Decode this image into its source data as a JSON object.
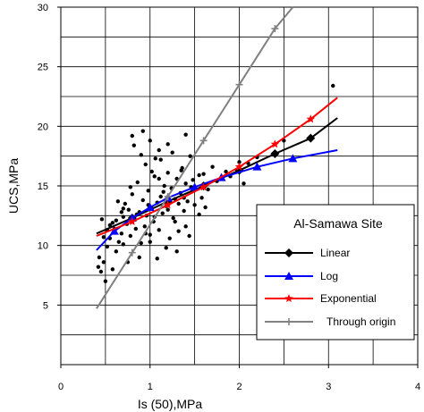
{
  "chart_data": {
    "type": "scatter",
    "xlabel": "Is (50),MPa",
    "ylabel": "UCS,MPa",
    "xlim": [
      0,
      4
    ],
    "ylim": [
      0,
      30
    ],
    "xticks": [
      "0",
      "1",
      "2",
      "3",
      "4"
    ],
    "yticks": [
      "5",
      "10",
      "15",
      "20",
      "25",
      "30"
    ],
    "grid": true,
    "legend": {
      "title": "Al-Samawa Site",
      "placement": "bottom-right"
    },
    "colors": {
      "Linear": "#000000",
      "Log": "#0000ff",
      "Exponential": "#ff0000",
      "Through origin": "#808080",
      "points": "#000000"
    },
    "points": [
      [
        0.42,
        8.2
      ],
      [
        0.43,
        9.0
      ],
      [
        0.45,
        7.8
      ],
      [
        0.48,
        8.6
      ],
      [
        0.5,
        7.0
      ],
      [
        0.52,
        9.9
      ],
      [
        0.55,
        10.6
      ],
      [
        0.58,
        8.0
      ],
      [
        0.55,
        11.7
      ],
      [
        0.6,
        11.4
      ],
      [
        0.62,
        9.5
      ],
      [
        0.65,
        10.3
      ],
      [
        0.68,
        11.0
      ],
      [
        0.7,
        12.4
      ],
      [
        0.72,
        13.5
      ],
      [
        0.74,
        11.8
      ],
      [
        0.76,
        13.0
      ],
      [
        0.78,
        10.8
      ],
      [
        0.8,
        14.3
      ],
      [
        0.82,
        12.2
      ],
      [
        0.84,
        11.4
      ],
      [
        0.86,
        15.3
      ],
      [
        0.88,
        12.8
      ],
      [
        0.9,
        10.2
      ],
      [
        0.92,
        13.8
      ],
      [
        0.94,
        11.6
      ],
      [
        0.95,
        16.8
      ],
      [
        0.96,
        12.5
      ],
      [
        0.98,
        14.6
      ],
      [
        1.0,
        10.9
      ],
      [
        1.02,
        13.1
      ],
      [
        1.04,
        12.0
      ],
      [
        1.05,
        15.8
      ],
      [
        1.06,
        17.3
      ],
      [
        1.08,
        13.6
      ],
      [
        1.1,
        11.3
      ],
      [
        1.12,
        14.1
      ],
      [
        1.14,
        12.7
      ],
      [
        1.16,
        15.0
      ],
      [
        1.18,
        13.3
      ],
      [
        1.2,
        16.1
      ],
      [
        1.22,
        10.6
      ],
      [
        1.24,
        14.8
      ],
      [
        1.26,
        12.3
      ],
      [
        1.28,
        13.9
      ],
      [
        1.3,
        15.6
      ],
      [
        1.32,
        11.2
      ],
      [
        1.34,
        14.4
      ],
      [
        1.36,
        16.5
      ],
      [
        1.38,
        12.9
      ],
      [
        1.4,
        15.2
      ],
      [
        1.42,
        13.7
      ],
      [
        1.44,
        10.8
      ],
      [
        1.46,
        14.9
      ],
      [
        1.48,
        15.5
      ],
      [
        1.5,
        13.4
      ],
      [
        0.8,
        19.2
      ],
      [
        0.82,
        18.4
      ],
      [
        0.9,
        17.6
      ],
      [
        0.92,
        19.6
      ],
      [
        1.0,
        18.8
      ],
      [
        1.1,
        18.0
      ],
      [
        1.12,
        17.2
      ],
      [
        1.2,
        18.5
      ],
      [
        1.25,
        17.8
      ],
      [
        1.35,
        16.3
      ],
      [
        1.4,
        19.3
      ],
      [
        1.45,
        17.5
      ],
      [
        1.3,
        9.5
      ],
      [
        1.18,
        9.8
      ],
      [
        1.08,
        8.9
      ],
      [
        1.0,
        10.3
      ],
      [
        0.88,
        9.0
      ],
      [
        0.75,
        8.6
      ],
      [
        0.7,
        10.1
      ],
      [
        0.62,
        12.1
      ],
      [
        0.58,
        11.9
      ],
      [
        0.52,
        11.3
      ],
      [
        0.48,
        10.7
      ],
      [
        0.46,
        12.2
      ],
      [
        1.55,
        12.6
      ],
      [
        1.58,
        14.0
      ],
      [
        1.6,
        16.0
      ],
      [
        1.62,
        13.2
      ],
      [
        1.65,
        14.7
      ],
      [
        1.55,
        15.9
      ],
      [
        1.38,
        14.0
      ],
      [
        1.28,
        12.0
      ],
      [
        1.15,
        14.5
      ],
      [
        1.02,
        16.2
      ],
      [
        0.98,
        13.4
      ],
      [
        0.85,
        12.6
      ],
      [
        0.78,
        14.9
      ],
      [
        0.7,
        13.1
      ],
      [
        0.68,
        12.8
      ],
      [
        0.64,
        13.7
      ],
      [
        2.0,
        17.0
      ],
      [
        2.1,
        16.9
      ],
      [
        2.2,
        17.4
      ],
      [
        2.5,
        18.8
      ],
      [
        3.05,
        23.4
      ],
      [
        1.75,
        15.4
      ],
      [
        1.85,
        16.2
      ],
      [
        1.7,
        16.6
      ],
      [
        1.9,
        15.8
      ],
      [
        2.05,
        15.2
      ],
      [
        1.1,
        15.6
      ],
      [
        1.2,
        13.0
      ],
      [
        1.32,
        13.5
      ],
      [
        0.95,
        11.0
      ],
      [
        1.05,
        12.4
      ],
      [
        1.4,
        11.6
      ]
    ],
    "series": [
      {
        "name": "Linear",
        "marker": "diamond",
        "x": [
          0.4,
          0.8,
          1.2,
          1.6,
          2.0,
          2.4,
          2.8,
          3.1
        ],
        "y": [
          11.0,
          12.3,
          13.7,
          15.0,
          16.3,
          17.7,
          19.0,
          20.7
        ]
      },
      {
        "name": "Log",
        "marker": "triangle",
        "x": [
          0.4,
          0.6,
          0.8,
          1.0,
          1.2,
          1.5,
          1.8,
          2.2,
          2.6,
          3.1
        ],
        "y": [
          9.6,
          11.2,
          12.3,
          13.2,
          14.0,
          14.9,
          15.7,
          16.6,
          17.3,
          18.0
        ]
      },
      {
        "name": "Exponential",
        "marker": "star",
        "x": [
          0.4,
          0.8,
          1.2,
          1.6,
          2.0,
          2.4,
          2.8,
          3.1
        ],
        "y": [
          10.8,
          12.0,
          13.4,
          14.9,
          16.6,
          18.5,
          20.6,
          22.4
        ]
      },
      {
        "name": "Through origin",
        "marker": "plus",
        "x": [
          0.4,
          0.8,
          1.2,
          1.6,
          2.0,
          2.4,
          2.6
        ],
        "y": [
          4.7,
          9.4,
          14.1,
          18.8,
          23.5,
          28.2,
          30.0
        ]
      }
    ]
  }
}
